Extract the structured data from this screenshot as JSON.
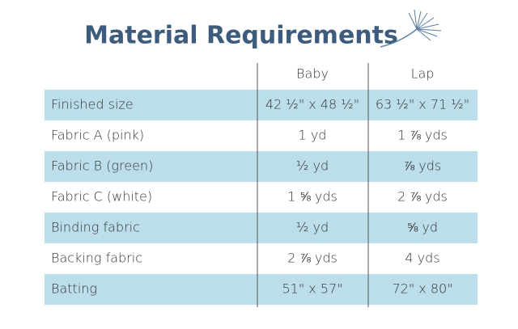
{
  "header": {
    "title": "Material Requirements"
  },
  "table": {
    "columns": [
      "Baby",
      "Lap"
    ],
    "rows": [
      [
        "Finished size",
        "42 ½\" x 48 ½\"",
        "63 ½\" x 71 ½\""
      ],
      [
        "Fabric A (pink)",
        "1 yd",
        "1 ⅞ yds"
      ],
      [
        "Fabric B (green)",
        "½ yd",
        "⅞ yds"
      ],
      [
        "Fabric C (white)",
        "1 ⅝ yds",
        "2 ⅞ yds"
      ],
      [
        "Binding fabric",
        "½ yd",
        "⅝ yd"
      ],
      [
        "Backing fabric",
        "2 ⅞ yds",
        "4 yds"
      ],
      [
        "Batting",
        "51\" x 57\"",
        "72\" x 80\""
      ]
    ]
  }
}
